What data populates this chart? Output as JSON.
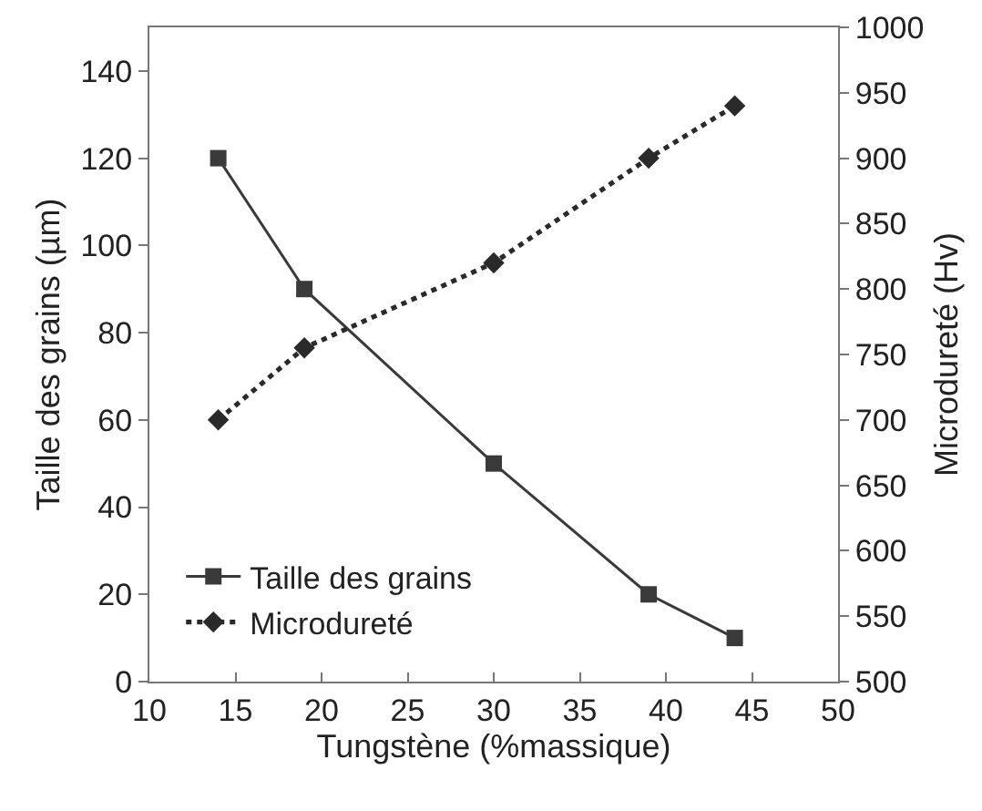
{
  "chart_data": {
    "type": "line",
    "xlabel": "Tungstène (%massique)",
    "ylabel": "Taille des grains (µm)",
    "y2label": "Microdureté (Hv)",
    "x": [
      14,
      19,
      30,
      39,
      44
    ],
    "series": [
      {
        "name": "Taille des grains",
        "color": "#3a3a3a",
        "values": [
          120,
          90,
          50,
          20,
          10
        ],
        "marker": "square",
        "line_style": "solid"
      },
      {
        "name": "Microdureté",
        "color": "#2a2a2a",
        "values": [
          700,
          755,
          820,
          900,
          940
        ],
        "axis": "y2",
        "marker": "diamond",
        "line_style": "dotted"
      }
    ],
    "xlim": [
      10,
      50
    ],
    "xticks": [
      10,
      15,
      20,
      25,
      30,
      35,
      40,
      45,
      50
    ],
    "ylim": [
      0,
      150
    ],
    "yticks": [
      0,
      20,
      40,
      60,
      80,
      100,
      120,
      140
    ],
    "y2lim": [
      500,
      1000
    ],
    "y2ticks": [
      500,
      550,
      600,
      650,
      700,
      750,
      800,
      850,
      900,
      950,
      1000
    ],
    "legend": "bottom left"
  }
}
